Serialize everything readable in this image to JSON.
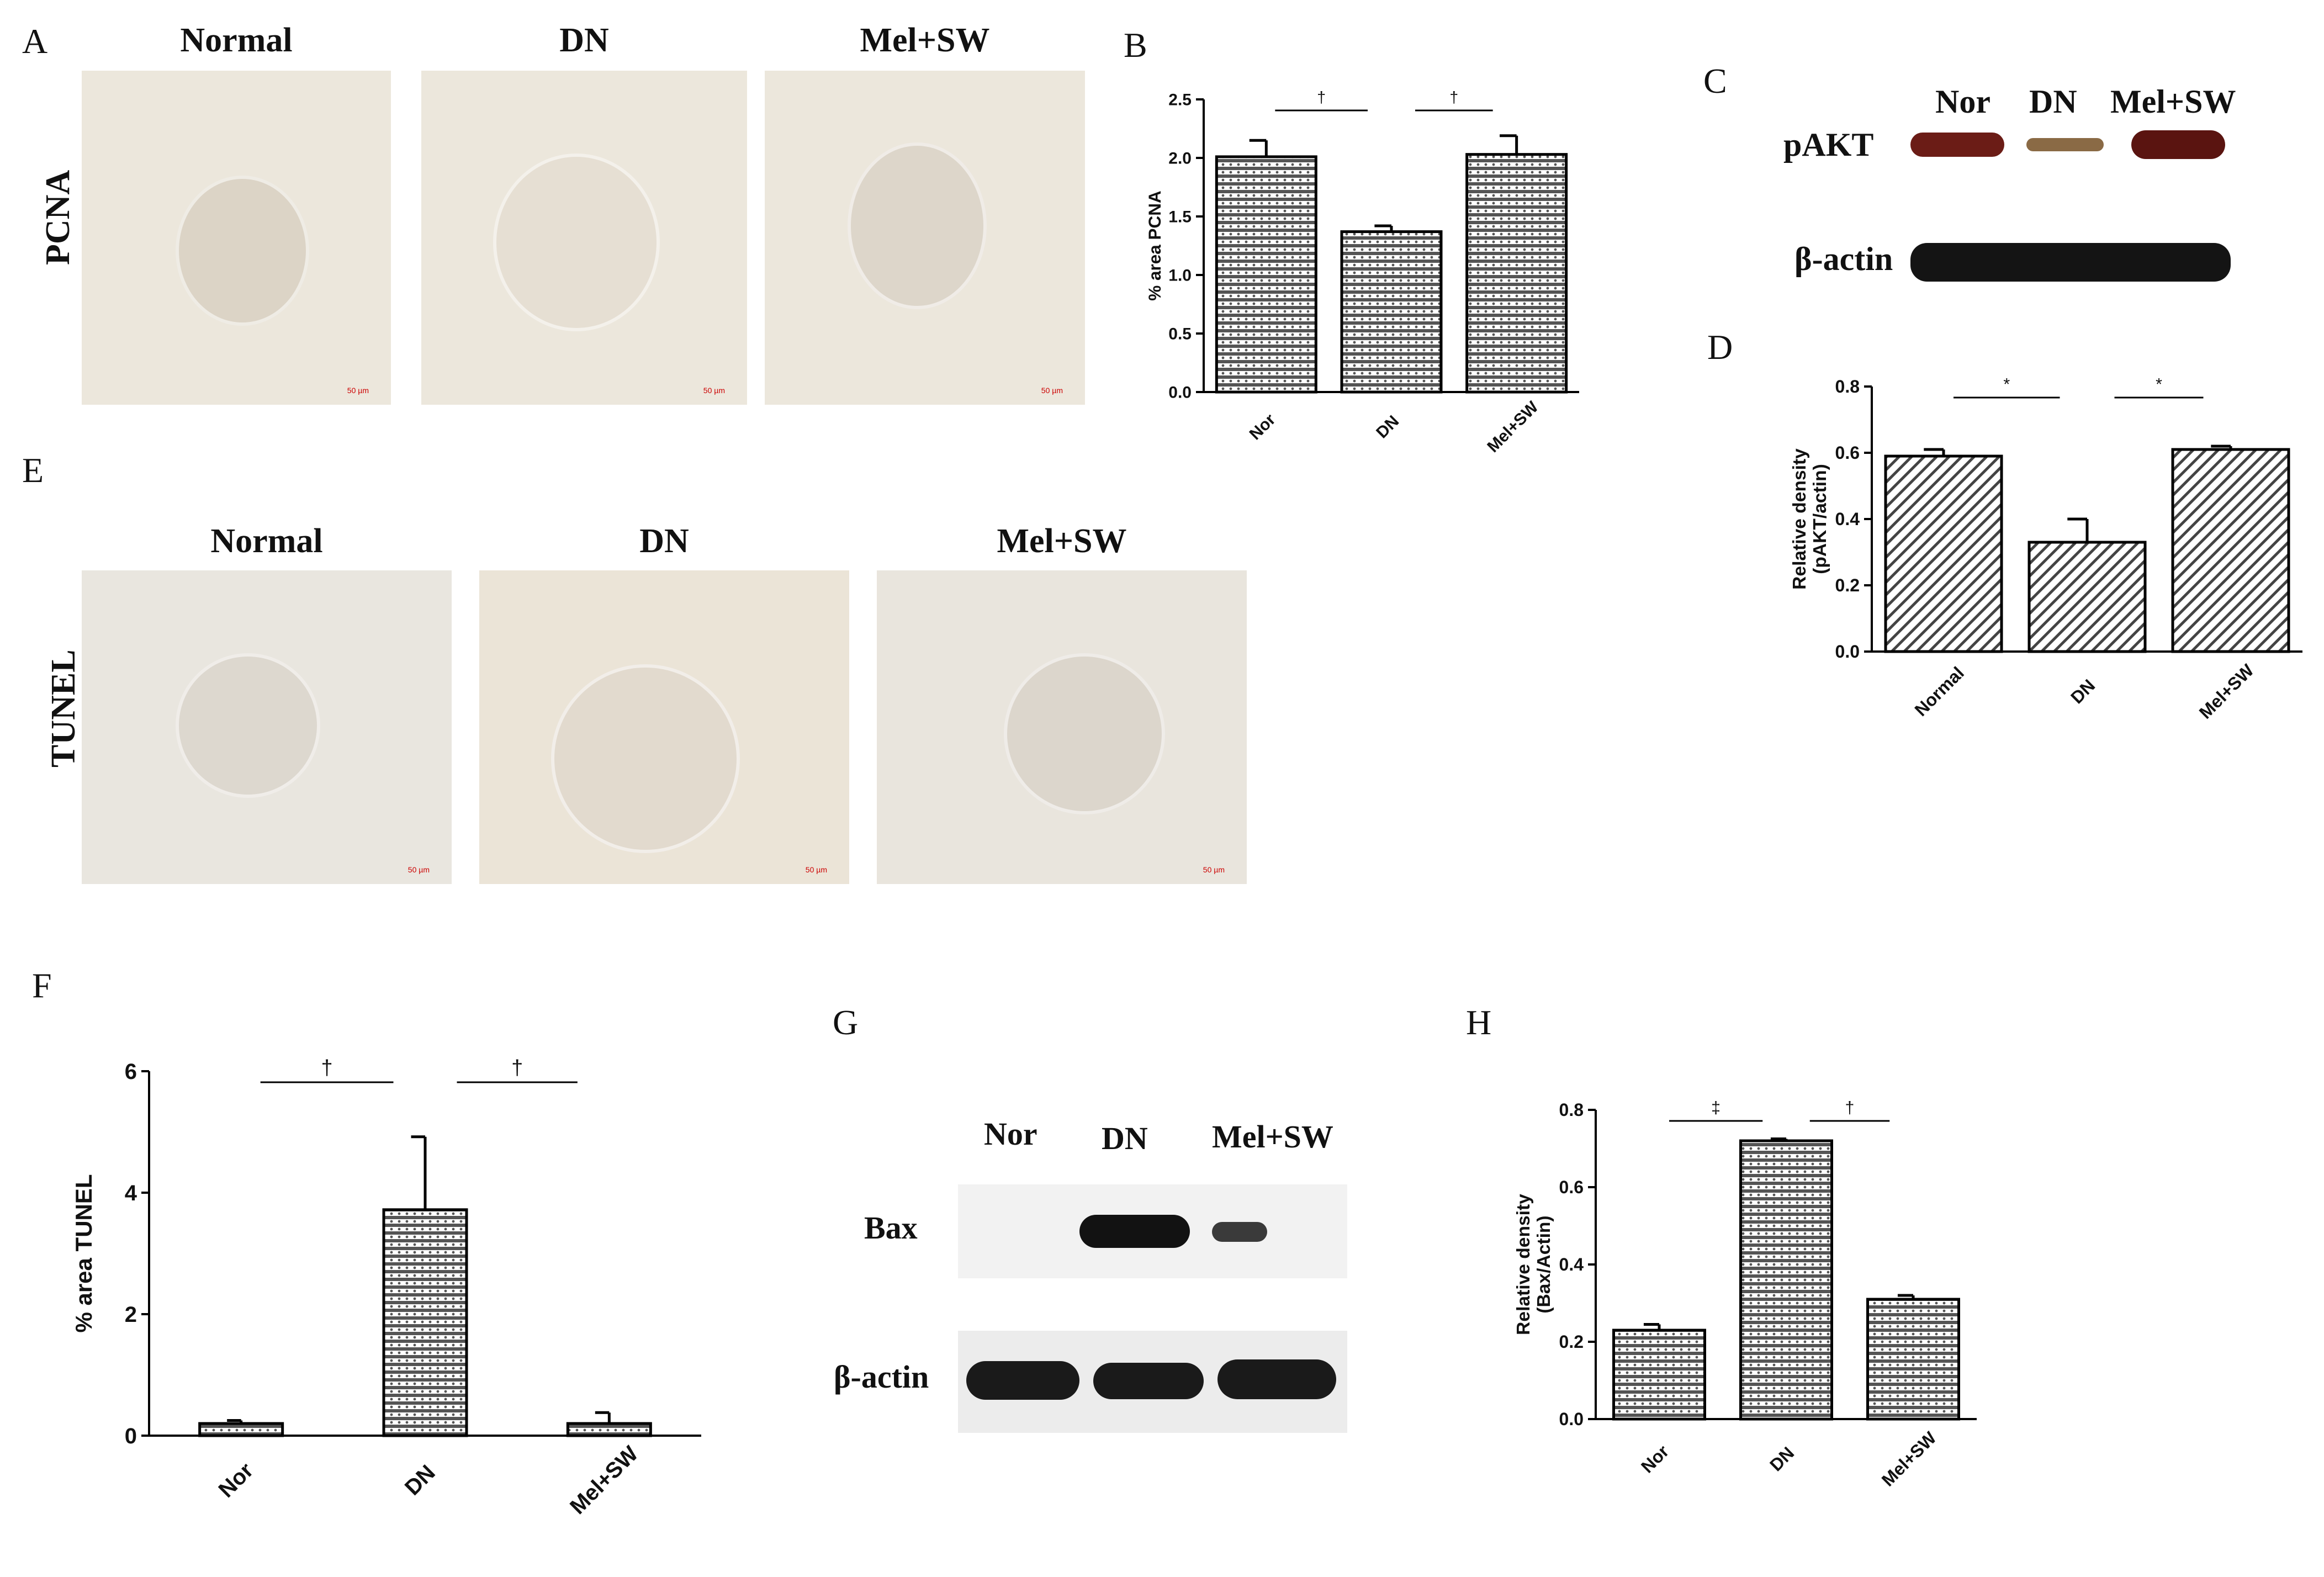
{
  "panels": {
    "A": {
      "label": "A",
      "row_label": "PCNA",
      "images": [
        {
          "title": "Normal",
          "scale": "50 µm"
        },
        {
          "title": "DN",
          "scale": "50 µm"
        },
        {
          "title": "Mel+SW",
          "scale": "50 µm"
        }
      ]
    },
    "B": {
      "label": "B"
    },
    "C": {
      "label": "C",
      "lanes": [
        "Nor",
        "DN",
        "Mel+SW"
      ],
      "rows": [
        "pAKT",
        "β-actin"
      ]
    },
    "D": {
      "label": "D"
    },
    "E": {
      "label": "E",
      "row_label": "TUNEL",
      "images": [
        {
          "title": "Normal",
          "scale": "50 µm"
        },
        {
          "title": "DN",
          "scale": "50 µm"
        },
        {
          "title": "Mel+SW",
          "scale": "50 µm"
        }
      ]
    },
    "F": {
      "label": "F"
    },
    "G": {
      "label": "G",
      "lanes": [
        "Nor",
        "DN",
        "Mel+SW"
      ],
      "rows": [
        "Bax",
        "β-actin"
      ]
    },
    "H": {
      "label": "H"
    }
  },
  "chart_data": [
    {
      "id": "B",
      "type": "bar",
      "categories": [
        "Nor",
        "DN",
        "Mel+SW"
      ],
      "values": [
        2.01,
        1.37,
        2.03
      ],
      "errors": [
        0.14,
        0.05,
        0.16
      ],
      "ylabel": "% area PCNA",
      "ylim": [
        0,
        2.5
      ],
      "yticks": [
        "0.0",
        "0.5",
        "1.0",
        "1.5",
        "2.0",
        "2.5"
      ],
      "significance": [
        {
          "from": 0,
          "to": 1,
          "symbol": "†"
        },
        {
          "from": 1,
          "to": 2,
          "symbol": "†"
        }
      ]
    },
    {
      "id": "D",
      "type": "bar",
      "categories": [
        "Normal",
        "DN",
        "Mel+SW"
      ],
      "values": [
        0.59,
        0.33,
        0.61
      ],
      "errors": [
        0.02,
        0.07,
        0.01
      ],
      "ylabel": "Relative density\n(pAKT/actin)",
      "ylim": [
        0,
        0.8
      ],
      "yticks": [
        "0.0",
        "0.2",
        "0.4",
        "0.6",
        "0.8"
      ],
      "significance": [
        {
          "from": 0,
          "to": 1,
          "symbol": "*"
        },
        {
          "from": 1,
          "to": 2,
          "symbol": "*"
        }
      ]
    },
    {
      "id": "F",
      "type": "bar",
      "categories": [
        "Nor",
        "DN",
        "Mel+SW"
      ],
      "values": [
        0.2,
        3.72,
        0.2
      ],
      "errors": [
        0.05,
        1.2,
        0.18
      ],
      "ylabel": "% area TUNEL",
      "ylim": [
        0,
        6
      ],
      "yticks": [
        "0",
        "2",
        "4",
        "6"
      ],
      "significance": [
        {
          "from": 0,
          "to": 1,
          "symbol": "†"
        },
        {
          "from": 1,
          "to": 2,
          "symbol": "†"
        }
      ]
    },
    {
      "id": "H",
      "type": "bar",
      "categories": [
        "Nor",
        "DN",
        "Mel+SW"
      ],
      "values": [
        0.23,
        0.72,
        0.31
      ],
      "errors": [
        0.015,
        0.005,
        0.01
      ],
      "ylabel": "Relative density\n(Bax/Actin)",
      "ylim": [
        0,
        0.8
      ],
      "yticks": [
        "0.0",
        "0.2",
        "0.4",
        "0.6",
        "0.8"
      ],
      "significance": [
        {
          "from": 0,
          "to": 1,
          "symbol": "‡"
        },
        {
          "from": 1,
          "to": 2,
          "symbol": "†"
        }
      ]
    }
  ]
}
